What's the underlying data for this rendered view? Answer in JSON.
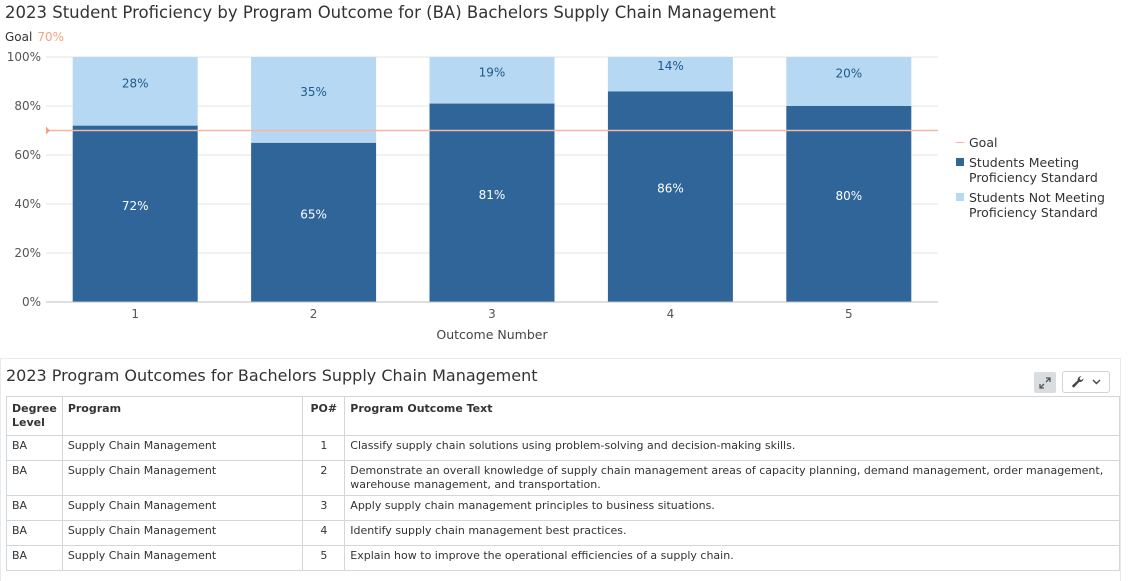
{
  "chart": {
    "title": "2023 Student Proficiency by Program Outcome for (BA) Bachelors Supply Chain Management",
    "goal_label": "Goal",
    "goal_value_label": "70%"
  },
  "chart_data": {
    "type": "bar",
    "stacked": true,
    "categories": [
      "1",
      "2",
      "3",
      "4",
      "5"
    ],
    "series": [
      {
        "name": "Students Meeting Proficiency Standard",
        "values": [
          72,
          65,
          81,
          86,
          80
        ],
        "labels": [
          "72%",
          "65%",
          "81%",
          "86%",
          "80%"
        ],
        "color": "#2f6599"
      },
      {
        "name": "Students Not Meeting Proficiency Standard",
        "values": [
          28,
          35,
          19,
          14,
          20
        ],
        "labels": [
          "28%",
          "35%",
          "19%",
          "14%",
          "20%"
        ],
        "color": "#b6d8f2"
      }
    ],
    "goal": {
      "name": "Goal",
      "value": 70,
      "color": "#f2b8a4"
    },
    "xlabel": "Outcome Number",
    "ylabel": "",
    "ylim": [
      0,
      100
    ],
    "yticks": [
      "0%",
      "20%",
      "40%",
      "60%",
      "80%",
      "100%"
    ],
    "grid": true,
    "legend_position": "right"
  },
  "legend": {
    "goal": "Goal",
    "meeting_line1": "Students Meeting",
    "meeting_line2": "Proficiency Standard",
    "not_meeting_line1": "Students Not Meeting",
    "not_meeting_line2": "Proficiency Standard"
  },
  "table_panel": {
    "title": "2023 Program Outcomes for Bachelors Supply Chain Management",
    "expand_icon": "expand-arrows-icon",
    "tools_icon": "wrench-icon",
    "dropdown_icon": "chevron-down-icon",
    "columns": [
      "Degree Level",
      "Program",
      "PO#",
      "Program Outcome Text"
    ],
    "rows": [
      {
        "degree": "BA",
        "program": "Supply Chain Management",
        "po": "1",
        "text": "Classify supply chain solutions using problem-solving and decision-making skills."
      },
      {
        "degree": "BA",
        "program": "Supply Chain Management",
        "po": "2",
        "text": "Demonstrate an overall knowledge of supply chain management areas of capacity planning, demand management, order management, warehouse management, and transportation."
      },
      {
        "degree": "BA",
        "program": "Supply Chain Management",
        "po": "3",
        "text": "Apply supply chain management principles to business situations."
      },
      {
        "degree": "BA",
        "program": "Supply Chain Management",
        "po": "4",
        "text": "Identify supply chain management best practices."
      },
      {
        "degree": "BA",
        "program": "Supply Chain Management",
        "po": "5",
        "text": "Explain how to improve the operational efficiencies of a supply chain."
      }
    ]
  }
}
